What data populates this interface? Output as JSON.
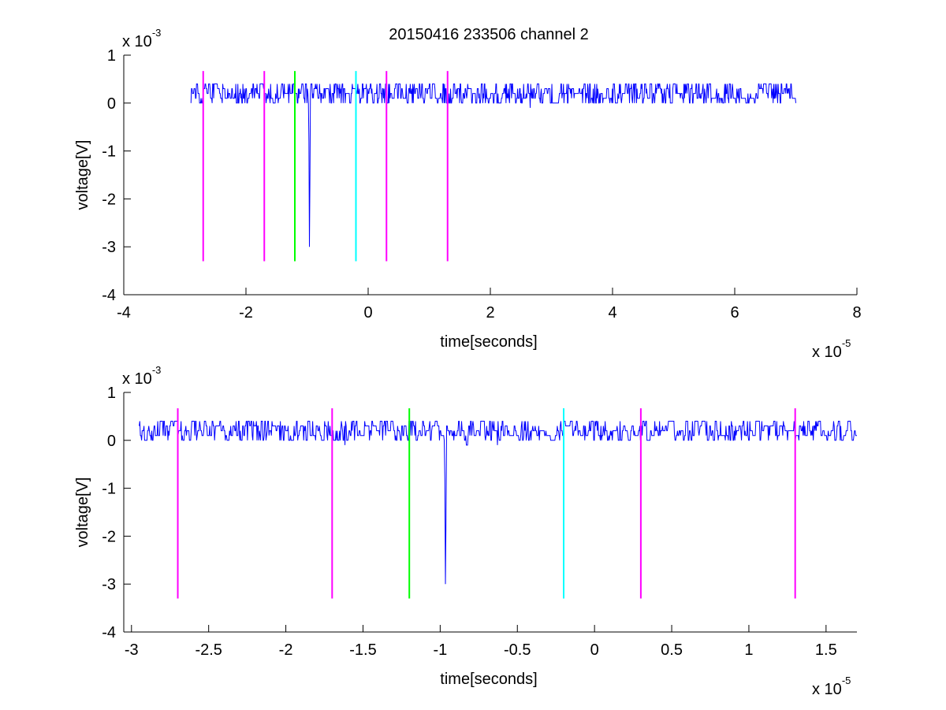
{
  "figure": {
    "title": "20150416 233506 channel 2"
  },
  "chart_data": [
    {
      "type": "line",
      "title": "20150416 233506 channel 2",
      "xlabel": "time[seconds]",
      "ylabel": "voltage[V]",
      "x_multiplier_label": "x 10",
      "x_multiplier_exp": "-5",
      "y_multiplier_label": "x 10",
      "y_multiplier_exp": "-3",
      "xlim": [
        -4,
        8
      ],
      "ylim": [
        -4,
        1
      ],
      "xticks": [
        -4,
        -2,
        0,
        2,
        4,
        6,
        8
      ],
      "xtick_labels": [
        "-4",
        "-2",
        "0",
        "2",
        "4",
        "6",
        "8"
      ],
      "yticks": [
        -4,
        -3,
        -2,
        -1,
        0,
        1
      ],
      "ytick_labels": [
        "-4",
        "-3",
        "-2",
        "-1",
        "0",
        "1"
      ],
      "grid": false,
      "series": [
        {
          "style": "noisy-trace",
          "color": "#0000ff",
          "x_range": [
            -2.9,
            7.0
          ],
          "baseline": 0.15,
          "noise_levels": [
            0.0,
            0.1,
            0.2,
            0.3,
            0.4
          ],
          "spike": {
            "x": -0.97,
            "min": -3.0
          }
        }
      ],
      "markers": [
        {
          "x": -2.7,
          "color": "#ff00ff",
          "y_range": [
            -3.3,
            0.67
          ]
        },
        {
          "x": -1.7,
          "color": "#ff00ff",
          "y_range": [
            -3.3,
            0.67
          ]
        },
        {
          "x": -1.2,
          "color": "#00ff00",
          "y_range": [
            -3.3,
            0.67
          ]
        },
        {
          "x": -0.2,
          "color": "#00ffff",
          "y_range": [
            -3.3,
            0.67
          ]
        },
        {
          "x": 0.3,
          "color": "#ff00ff",
          "y_range": [
            -3.3,
            0.67
          ]
        },
        {
          "x": 1.3,
          "color": "#ff00ff",
          "y_range": [
            -3.3,
            0.67
          ]
        }
      ]
    },
    {
      "type": "line",
      "title": "",
      "xlabel": "time[seconds]",
      "ylabel": "voltage[V]",
      "x_multiplier_label": "x 10",
      "x_multiplier_exp": "-5",
      "y_multiplier_label": "x 10",
      "y_multiplier_exp": "-3",
      "xlim": [
        -3.05,
        1.7
      ],
      "ylim": [
        -4,
        1
      ],
      "xticks": [
        -3,
        -2.5,
        -2,
        -1.5,
        -1,
        -0.5,
        0,
        0.5,
        1,
        1.5
      ],
      "xtick_labels": [
        "-3",
        "-2.5",
        "-2",
        "-1.5",
        "-1",
        "-0.5",
        "0",
        "0.5",
        "1",
        "1.5"
      ],
      "yticks": [
        -4,
        -3,
        -2,
        -1,
        0,
        1
      ],
      "ytick_labels": [
        "-4",
        "-3",
        "-2",
        "-1",
        "0",
        "1"
      ],
      "grid": false,
      "series": [
        {
          "style": "noisy-trace",
          "color": "#0000ff",
          "x_range": [
            -2.95,
            1.7
          ],
          "baseline": 0.15,
          "noise_levels": [
            0.0,
            0.1,
            0.2,
            0.3,
            0.4
          ],
          "spike": {
            "x": -0.97,
            "min": -3.0
          }
        }
      ],
      "markers": [
        {
          "x": -2.7,
          "color": "#ff00ff",
          "y_range": [
            -3.3,
            0.67
          ]
        },
        {
          "x": -1.7,
          "color": "#ff00ff",
          "y_range": [
            -3.3,
            0.67
          ]
        },
        {
          "x": -1.2,
          "color": "#00ff00",
          "y_range": [
            -3.3,
            0.67
          ]
        },
        {
          "x": -0.2,
          "color": "#00ffff",
          "y_range": [
            -3.3,
            0.67
          ]
        },
        {
          "x": 0.3,
          "color": "#ff00ff",
          "y_range": [
            -3.3,
            0.67
          ]
        },
        {
          "x": 1.3,
          "color": "#ff00ff",
          "y_range": [
            -3.3,
            0.67
          ]
        }
      ]
    }
  ]
}
